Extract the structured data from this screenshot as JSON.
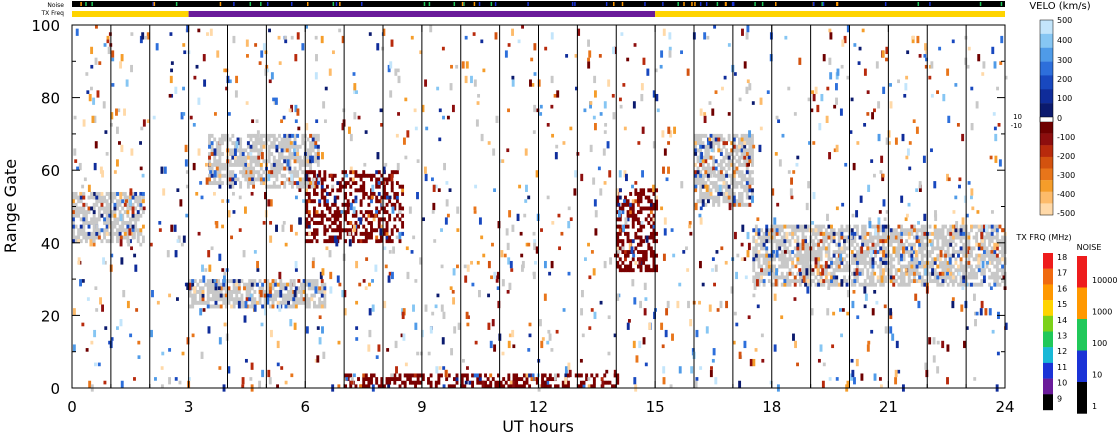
{
  "chart_data": {
    "type": "heatmap",
    "title": "",
    "xlabel": "UT hours",
    "ylabel": "Range Gate",
    "xlim": [
      0,
      24
    ],
    "ylim": [
      0,
      100
    ],
    "x_ticks": [
      "0",
      "3",
      "6",
      "9",
      "12",
      "15",
      "18",
      "21",
      "24"
    ],
    "y_ticks": [
      "0",
      "20",
      "40",
      "60",
      "80",
      "100"
    ],
    "top_strips": {
      "noise_label": "Noise",
      "txfreq_label": "TX Freq",
      "txfreq_segments": [
        {
          "from": 0,
          "to": 3,
          "freq_mhz": 15
        },
        {
          "from": 3,
          "to": 15,
          "freq_mhz": 10
        },
        {
          "from": 15,
          "to": 24,
          "freq_mhz": 15
        }
      ]
    },
    "beam_scan_boundaries_ut": [
      1,
      2,
      3,
      4,
      5,
      6,
      7,
      8,
      9,
      10,
      11,
      12,
      13,
      14,
      15,
      16,
      17,
      18,
      19,
      20,
      21,
      22,
      23
    ],
    "echo_bands": [
      {
        "name": "ground-scatter-band-a",
        "from": 0.0,
        "to": 1.8,
        "gate_low": 40,
        "gate_high": 54
      },
      {
        "name": "ground-scatter-band-b",
        "from": 3.0,
        "to": 6.5,
        "gate_low": 22,
        "gate_high": 30
      },
      {
        "name": "ground-scatter-band-c",
        "from": 3.5,
        "to": 6.3,
        "gate_low": 55,
        "gate_high": 70
      },
      {
        "name": "ionospheric-band-d",
        "from": 6.0,
        "to": 8.5,
        "gate_low": 40,
        "gate_high": 60
      },
      {
        "name": "ionospheric-band-e",
        "from": 14.0,
        "to": 15.0,
        "gate_low": 32,
        "gate_high": 55
      },
      {
        "name": "ground-scatter-band-f",
        "from": 16.0,
        "to": 17.5,
        "gate_low": 50,
        "gate_high": 70
      },
      {
        "name": "ground-scatter-band-g",
        "from": 17.5,
        "to": 24.0,
        "gate_low": 28,
        "gate_high": 45
      },
      {
        "name": "low-gate-band-h",
        "from": 7.0,
        "to": 14.0,
        "gate_low": 0,
        "gate_high": 4
      }
    ],
    "velocity_scale": {
      "title": "VELO (km/s)",
      "range": [
        -500,
        500
      ],
      "ticks": [
        "500",
        "400",
        "300",
        "200",
        "100",
        "0",
        "-100",
        "-200",
        "-300",
        "-400",
        "-500"
      ],
      "threshold_labels": [
        "10",
        "-10"
      ],
      "colors": [
        "#ffd9a8",
        "#fdbb6a",
        "#f59d2a",
        "#e8751a",
        "#d3520f",
        "#b82a0c",
        "#8d0e0e",
        "#6e0000",
        "#ffffff",
        "#0b1a6e",
        "#0f2c9a",
        "#1848bf",
        "#2d6fdb",
        "#4f9be8",
        "#86c6f3",
        "#c3e5fb"
      ]
    },
    "txfreq_scale": {
      "title": "TX FRQ (MHz)",
      "ticks": [
        "18",
        "17",
        "16",
        "15",
        "14",
        "13",
        "12",
        "11",
        "10",
        "9"
      ],
      "colors": [
        "#ee1c1c",
        "#f06a10",
        "#ff9800",
        "#ffd400",
        "#7cd11a",
        "#20c85a",
        "#19b8d6",
        "#1b33d6",
        "#6a1b9a",
        "#000000"
      ]
    },
    "noise_scale": {
      "title": "NOISE",
      "ticks": [
        "10000",
        "1000",
        "100",
        "10",
        "1"
      ],
      "colors": [
        "#ee1c1c",
        "#ff9800",
        "#20c85a",
        "#1b33d6",
        "#000000"
      ]
    }
  }
}
